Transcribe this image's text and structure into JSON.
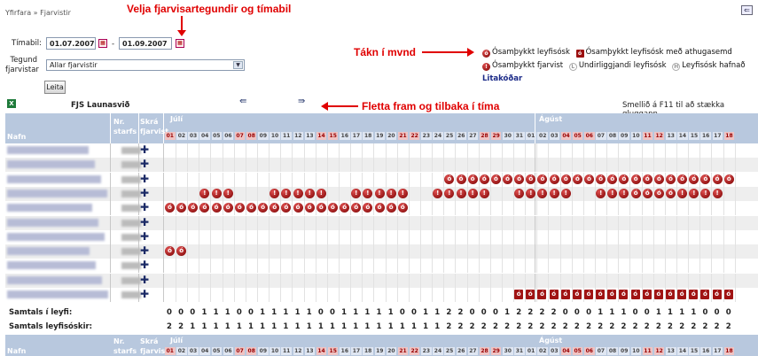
{
  "breadcrumb": {
    "root": "Yfirfara",
    "sep": "»",
    "current": "Fjarvistir"
  },
  "annotations": {
    "top": "Velja fjarvisartegundir og tímabil",
    "legend": "Tákn í mvnd",
    "nav": "Fletta fram og tilbaka í tíma"
  },
  "filters": {
    "period_label": "Tímabil:",
    "from": "01.07.2007",
    "dash": "-",
    "to": "01.09.2007",
    "type_label": "Tegund fjarvistar",
    "type_value": "Allar fjarvistir",
    "submit": "Leita"
  },
  "legend": {
    "items": [
      {
        "icon": "unapproved-request-icon",
        "label": "Ósamþykkt leyfisósk"
      },
      {
        "icon": "unapproved-note-icon",
        "label": "Ósamþykkt leyfisósk með athugasemd"
      },
      {
        "icon": "unapproved-absence-icon",
        "label": "Ósamþykkt fjarvist"
      },
      {
        "icon": "pending-request-icon",
        "label": "Undirliggjandi leyfisósk"
      },
      {
        "icon": "rejected-request-icon",
        "label": "Leyfisósk hafnað"
      }
    ],
    "link": "Litakóðar"
  },
  "toolbar": {
    "unit": "FJS Launasvið",
    "hint": "Smellið á F11 til að stækka gluggann"
  },
  "grid": {
    "col_name": "Nafn",
    "col_nr": "Nr. starfs",
    "col_reg": "Skrá fjarvist",
    "months": [
      "Júlí",
      "Ágúst"
    ],
    "days_july": [
      "01",
      "02",
      "03",
      "04",
      "05",
      "06",
      "07",
      "08",
      "09",
      "10",
      "11",
      "12",
      "13",
      "14",
      "15",
      "16",
      "17",
      "18",
      "19",
      "20",
      "21",
      "22",
      "23",
      "24",
      "25",
      "26",
      "27",
      "28",
      "29",
      "30",
      "31"
    ],
    "days_aug": [
      "01",
      "02",
      "03",
      "04",
      "05",
      "06",
      "07",
      "08",
      "09",
      "10",
      "11",
      "12",
      "13",
      "14",
      "15",
      "16",
      "17",
      "18"
    ],
    "red_july": [
      1,
      7,
      8,
      14,
      15,
      21,
      22,
      28,
      29
    ],
    "red_aug": [
      4,
      5,
      6,
      11,
      12,
      18
    ]
  },
  "totals": {
    "leave_label": "Samtals í leyfi:",
    "leave": [
      0,
      0,
      0,
      1,
      1,
      1,
      0,
      0,
      1,
      1,
      1,
      1,
      1,
      0,
      0,
      1,
      1,
      1,
      1,
      1,
      0,
      0,
      1,
      1,
      2,
      2,
      0,
      0,
      0,
      1,
      2,
      2,
      2,
      2,
      0,
      0,
      0,
      1,
      1,
      1,
      0,
      0,
      1,
      1,
      1,
      1,
      0,
      0,
      0
    ],
    "requests_label": "Samtals leyfisóskir:",
    "requests": [
      2,
      2,
      1,
      1,
      1,
      1,
      1,
      1,
      1,
      1,
      1,
      1,
      1,
      1,
      1,
      1,
      1,
      1,
      1,
      1,
      1,
      1,
      1,
      1,
      2,
      2,
      2,
      2,
      2,
      2,
      2,
      2,
      2,
      2,
      2,
      2,
      2,
      2,
      2,
      2,
      2,
      2,
      2,
      2,
      2,
      2,
      2,
      2,
      2
    ]
  },
  "colors": {
    "header_bg": "#b8c8de",
    "accent": "#e00000",
    "link": "#1b2a88",
    "weekend": "#efc4c4"
  }
}
